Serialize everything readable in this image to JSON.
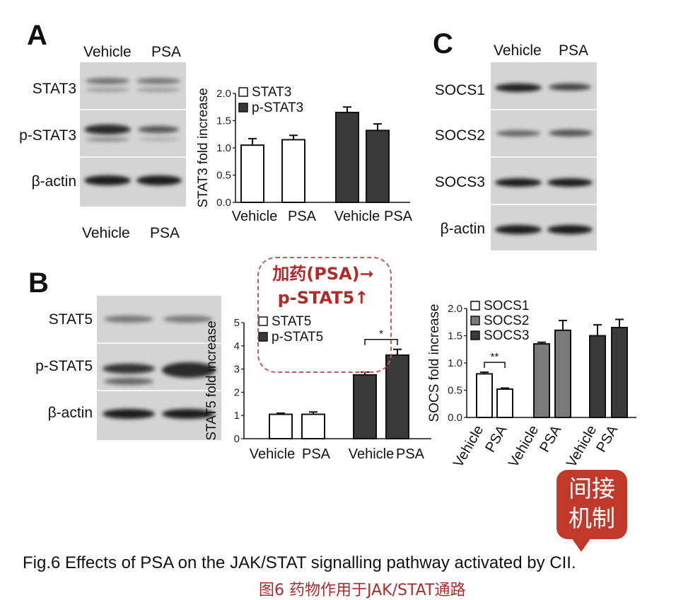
{
  "panel_a": {
    "letter": "A",
    "blot_header": [
      "Vehicle",
      "PSA"
    ],
    "blot_footer": [
      "Vehicle",
      "PSA"
    ],
    "rows": [
      "STAT3",
      "p-STAT3",
      "β-actin"
    ]
  },
  "panel_b": {
    "letter": "B",
    "rows": [
      "STAT5",
      "p-STAT5",
      "β-actin"
    ]
  },
  "panel_c": {
    "letter": "C",
    "blot_header": [
      "Vehicle",
      "PSA"
    ],
    "rows": [
      "SOCS1",
      "SOCS2",
      "SOCS3",
      "β-actin"
    ]
  },
  "annotation": {
    "line1": "加药(PSA)➞",
    "line2": "p-STAT5↑"
  },
  "bubble": {
    "line1": "间接",
    "line2": "机制"
  },
  "caption": {
    "english": "Fig.6 Effects of PSA on the JAK/STAT signalling pathway activated by CII.",
    "chinese": "图6 药物作用于JAK/STAT通路"
  },
  "colors": {
    "dark_bar": "#3a3a3a",
    "mid_bar": "#7a7a7a",
    "annotation_red": "#b02a2a",
    "bubble_red": "#c0392b"
  },
  "chart_data": [
    {
      "id": "stat3",
      "type": "bar",
      "ylabel": "STAT3 fold increase",
      "ylim": [
        0,
        2.0
      ],
      "yticks": [
        "0.0",
        "0.5",
        "1.0",
        "1.5",
        "2.0"
      ],
      "categories": [
        "Vehicle",
        "PSA",
        "Vehicle",
        "PSA"
      ],
      "series": [
        {
          "name": "STAT3",
          "values": [
            1.05,
            1.15,
            null,
            null
          ],
          "errors": [
            0.12,
            0.08,
            null,
            null
          ],
          "fill": "#ffffff"
        },
        {
          "name": "p-STAT3",
          "values": [
            null,
            null,
            1.65,
            1.32
          ],
          "errors": [
            null,
            null,
            0.1,
            0.12
          ],
          "fill": "#3a3a3a"
        }
      ],
      "legend": "top-left"
    },
    {
      "id": "stat5",
      "type": "bar",
      "ylabel": "STAT5 fold increase",
      "ylim": [
        0,
        5
      ],
      "yticks": [
        "0",
        "1",
        "2",
        "3",
        "4",
        "5"
      ],
      "categories": [
        "Vehicle",
        "PSA",
        "Vehicle",
        "PSA"
      ],
      "series": [
        {
          "name": "STAT5",
          "values": [
            1.05,
            1.05,
            null,
            null
          ],
          "errors": [
            0.05,
            0.1,
            null,
            null
          ],
          "fill": "#ffffff"
        },
        {
          "name": "p-STAT5",
          "values": [
            null,
            null,
            2.75,
            3.6
          ],
          "errors": [
            null,
            null,
            0.12,
            0.25
          ],
          "fill": "#3a3a3a"
        }
      ],
      "significance": [
        {
          "between": [
            2,
            3
          ],
          "label": "*"
        }
      ],
      "legend": "top-left"
    },
    {
      "id": "socs",
      "type": "bar",
      "ylabel": "SOCS fold increase",
      "ylim": [
        0,
        2.0
      ],
      "yticks": [
        "0.0",
        "0.5",
        "1.0",
        "1.5",
        "2.0"
      ],
      "categories": [
        "Vehicle",
        "PSA",
        "Vehicle",
        "PSA",
        "Vehicle",
        "PSA"
      ],
      "series": [
        {
          "name": "SOCS1",
          "values": [
            0.8,
            0.52,
            null,
            null,
            null,
            null
          ],
          "errors": [
            0.03,
            0.02,
            null,
            null,
            null,
            null
          ],
          "fill": "#ffffff"
        },
        {
          "name": "SOCS2",
          "values": [
            null,
            null,
            1.35,
            1.6,
            null,
            null
          ],
          "errors": [
            null,
            null,
            0.03,
            0.18,
            null,
            null
          ],
          "fill": "#7a7a7a"
        },
        {
          "name": "SOCS3",
          "values": [
            null,
            null,
            null,
            null,
            1.5,
            1.65
          ],
          "errors": [
            null,
            null,
            null,
            null,
            0.2,
            0.15
          ],
          "fill": "#3a3a3a"
        }
      ],
      "significance": [
        {
          "between": [
            0,
            1
          ],
          "label": "**"
        }
      ],
      "legend": "top-left"
    }
  ]
}
